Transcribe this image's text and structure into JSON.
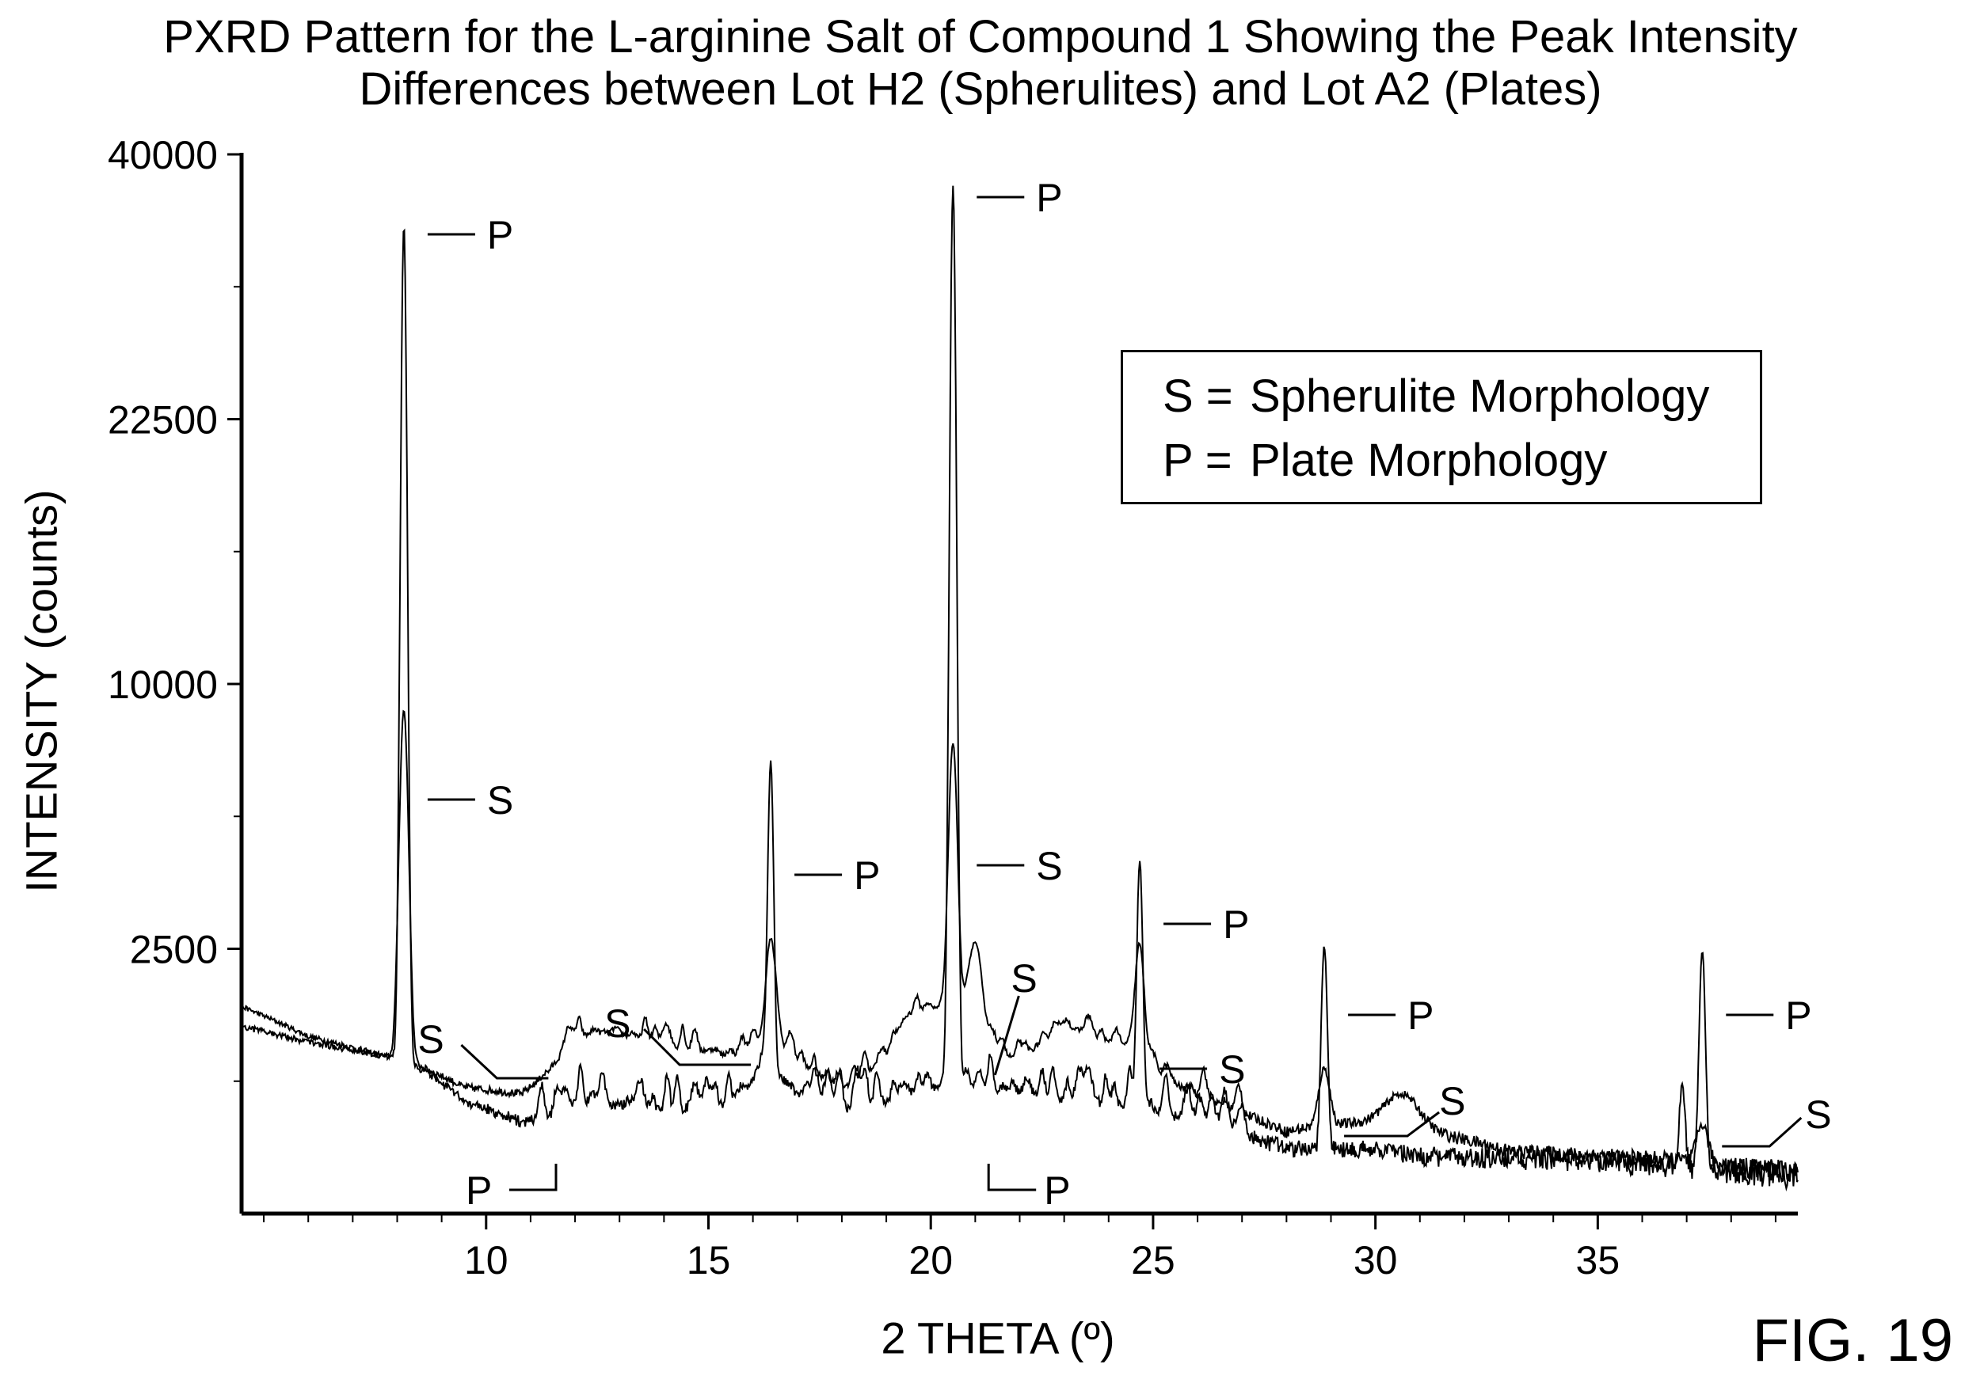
{
  "chart_data": {
    "type": "line",
    "title_lines": [
      "PXRD Pattern for the L-arginine Salt of Compound 1 Showing the Peak Intensity",
      "Differences between Lot H2 (Spherulites) and Lot A2 (Plates)"
    ],
    "xlabel": "2 THETA (º)",
    "ylabel": "INTENSITY (counts)",
    "figure_label": "FIG. 19",
    "x_ticks": [
      10,
      15,
      20,
      25,
      30,
      35
    ],
    "y_ticks": [
      2500,
      10000,
      22500,
      40000
    ],
    "xlim": [
      4.5,
      39.5
    ],
    "y_scale": "sqrt",
    "ylim": [
      0,
      40000
    ],
    "legend": {
      "placement": "top-right",
      "entries": [
        {
          "symbol": "S =",
          "label": "Spherulite Morphology"
        },
        {
          "symbol": "P =",
          "label": "Plate Morphology"
        }
      ]
    },
    "series": [
      {
        "label_symbol": "S",
        "baseline": [
          [
            4.5,
            1530
          ],
          [
            6,
            1120
          ],
          [
            7.6,
            900
          ],
          [
            8.3,
            820
          ],
          [
            9.5,
            570
          ],
          [
            10.8,
            510
          ],
          [
            11.4,
            700
          ],
          [
            12,
            1120
          ],
          [
            13,
            1150
          ],
          [
            14,
            1020
          ],
          [
            15.5,
            860
          ],
          [
            16.4,
            1120
          ],
          [
            17,
            820
          ],
          [
            18,
            520
          ],
          [
            19,
            820
          ],
          [
            19.5,
            1420
          ],
          [
            20.3,
            1520
          ],
          [
            21,
            1020
          ],
          [
            22,
            840
          ],
          [
            23,
            1270
          ],
          [
            24,
            1020
          ],
          [
            25,
            720
          ],
          [
            26,
            480
          ],
          [
            28,
            240
          ],
          [
            28.8,
            280
          ],
          [
            30,
            300
          ],
          [
            31,
            250
          ],
          [
            33,
            140
          ],
          [
            35,
            120
          ],
          [
            37,
            100
          ],
          [
            39.5,
            60
          ]
        ],
        "peaks": [
          [
            8.15,
            8200,
            0.13
          ],
          [
            16.4,
            1550,
            0.14
          ],
          [
            20.5,
            6500,
            0.13
          ],
          [
            21,
            1600,
            0.2
          ],
          [
            24.7,
            1520,
            0.14
          ],
          [
            28.85,
            470,
            0.16
          ],
          [
            37.35,
            190,
            0.16
          ],
          [
            30.6,
            240,
            0.5
          ]
        ],
        "noise": 190,
        "peak_labels": [
          [
            8.15,
            "S"
          ],
          [
            16.4,
            "S"
          ],
          [
            20.5,
            "S"
          ],
          [
            21,
            "S"
          ],
          [
            24.7,
            "S"
          ],
          [
            28.85,
            "S"
          ],
          [
            37.35,
            "S"
          ],
          [
            11.4,
            "S"
          ]
        ]
      },
      {
        "label_symbol": "P",
        "baseline": [
          [
            4.5,
            1250
          ],
          [
            6,
            1050
          ],
          [
            7.6,
            900
          ],
          [
            8.3,
            820
          ],
          [
            9.5,
            450
          ],
          [
            10.8,
            300
          ],
          [
            11.4,
            320
          ],
          [
            12,
            450
          ],
          [
            13,
            420
          ],
          [
            14,
            380
          ],
          [
            15.5,
            420
          ],
          [
            16.4,
            760
          ],
          [
            17,
            500
          ],
          [
            18,
            370
          ],
          [
            19,
            450
          ],
          [
            19.5,
            520
          ],
          [
            20.3,
            560
          ],
          [
            21,
            560
          ],
          [
            22,
            520
          ],
          [
            23,
            470
          ],
          [
            24,
            430
          ],
          [
            25,
            360
          ],
          [
            26,
            300
          ],
          [
            28,
            150
          ],
          [
            28.8,
            150
          ],
          [
            30,
            150
          ],
          [
            31,
            120
          ],
          [
            33,
            110
          ],
          [
            35,
            100
          ],
          [
            37,
            80
          ],
          [
            39.5,
            60
          ]
        ],
        "peaks": [
          [
            8.15,
            34000,
            0.09
          ],
          [
            16.4,
            6500,
            0.08
          ],
          [
            20.5,
            37000,
            0.09
          ],
          [
            24.7,
            4000,
            0.08
          ],
          [
            28.85,
            2400,
            0.08
          ],
          [
            37.35,
            2400,
            0.08
          ],
          [
            36.9,
            500,
            0.08
          ]
        ],
        "noise": 230,
        "peak_labels": [
          [
            8.15,
            "P"
          ],
          [
            16.4,
            "P"
          ],
          [
            20.5,
            "P"
          ],
          [
            24.7,
            "P"
          ],
          [
            28.85,
            "P"
          ],
          [
            37.35,
            "P"
          ],
          [
            11.5,
            "P"
          ],
          [
            21.3,
            "P"
          ]
        ]
      }
    ]
  }
}
